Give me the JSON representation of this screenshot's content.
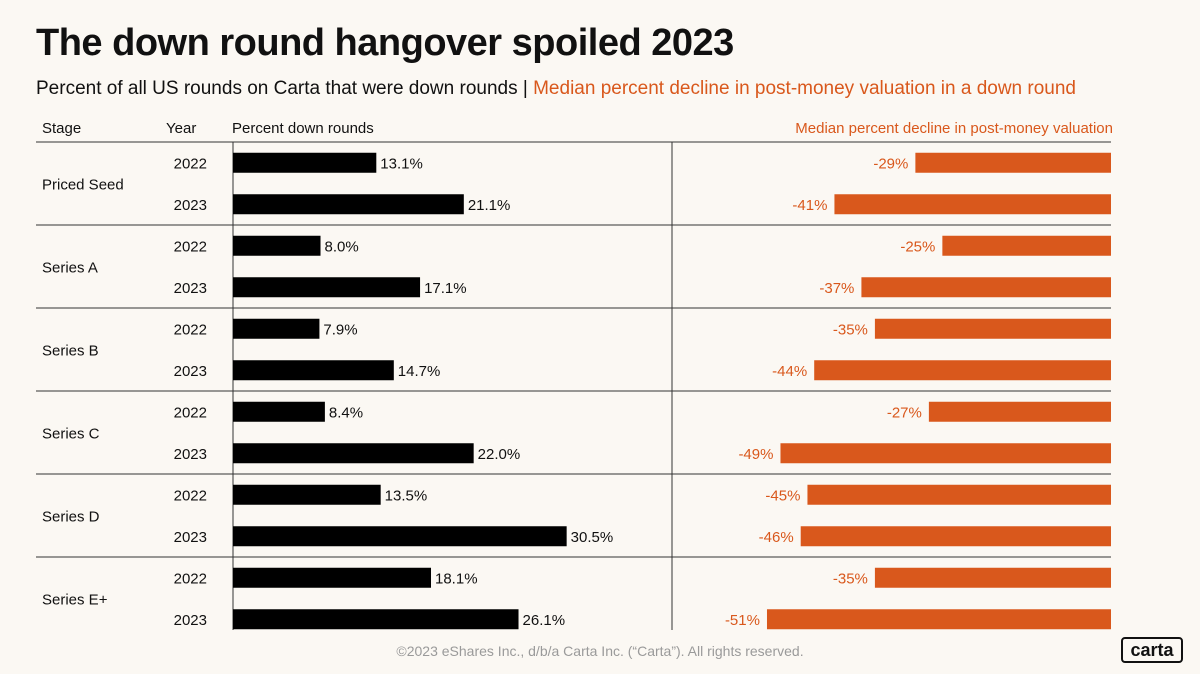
{
  "title": "The down round hangover spoiled 2023",
  "subtitle": {
    "left": "Percent of all US rounds on Carta that were down rounds",
    "separator": "|",
    "right": "Median percent decline in post-money valuation in a down round"
  },
  "headers": {
    "stage": "Stage",
    "year": "Year",
    "left": "Percent down rounds",
    "right": "Median percent decline in post-money valuation"
  },
  "colors": {
    "left_bar": "#000000",
    "right_bar": "#d9581c",
    "background": "#fbf8f3",
    "grid": "#333333"
  },
  "footer": "©2023 eShares Inc., d/b/a Carta Inc. (“Carta”). All rights reserved.",
  "logo_text": "carta",
  "chart_data": [
    {
      "type": "bar",
      "orientation": "horizontal",
      "title": "Percent down rounds",
      "groups": [
        "Priced Seed",
        "Series A",
        "Series B",
        "Series C",
        "Series D",
        "Series E+"
      ],
      "categories": [
        "2022",
        "2023"
      ],
      "values": [
        [
          13.1,
          21.1
        ],
        [
          8.0,
          17.1
        ],
        [
          7.9,
          14.7
        ],
        [
          8.4,
          22.0
        ],
        [
          13.5,
          30.5
        ],
        [
          18.1,
          26.1
        ]
      ],
      "labels": [
        [
          "13.1%",
          "21.1%"
        ],
        [
          "8.0%",
          "17.1%"
        ],
        [
          "7.9%",
          "14.7%"
        ],
        [
          "8.4%",
          "22.0%"
        ],
        [
          "13.5%",
          "30.5%"
        ],
        [
          "18.1%",
          "26.1%"
        ]
      ],
      "xlim": [
        0,
        33
      ],
      "grid": false,
      "unit": "%"
    },
    {
      "type": "bar",
      "orientation": "horizontal",
      "direction": "right-to-left",
      "title": "Median percent decline in post-money valuation",
      "groups": [
        "Priced Seed",
        "Series A",
        "Series B",
        "Series C",
        "Series D",
        "Series E+"
      ],
      "categories": [
        "2022",
        "2023"
      ],
      "values": [
        [
          -29,
          -41
        ],
        [
          -25,
          -37
        ],
        [
          -35,
          -44
        ],
        [
          -27,
          -49
        ],
        [
          -45,
          -46
        ],
        [
          -35,
          -51
        ]
      ],
      "labels": [
        [
          "-29%",
          "-41%"
        ],
        [
          "-25%",
          "-37%"
        ],
        [
          "-35%",
          "-44%"
        ],
        [
          "-27%",
          "-49%"
        ],
        [
          "-45%",
          "-46%"
        ],
        [
          "-35%",
          "-51%"
        ]
      ],
      "xlim": [
        -55,
        0
      ],
      "grid": false,
      "unit": "%"
    }
  ]
}
